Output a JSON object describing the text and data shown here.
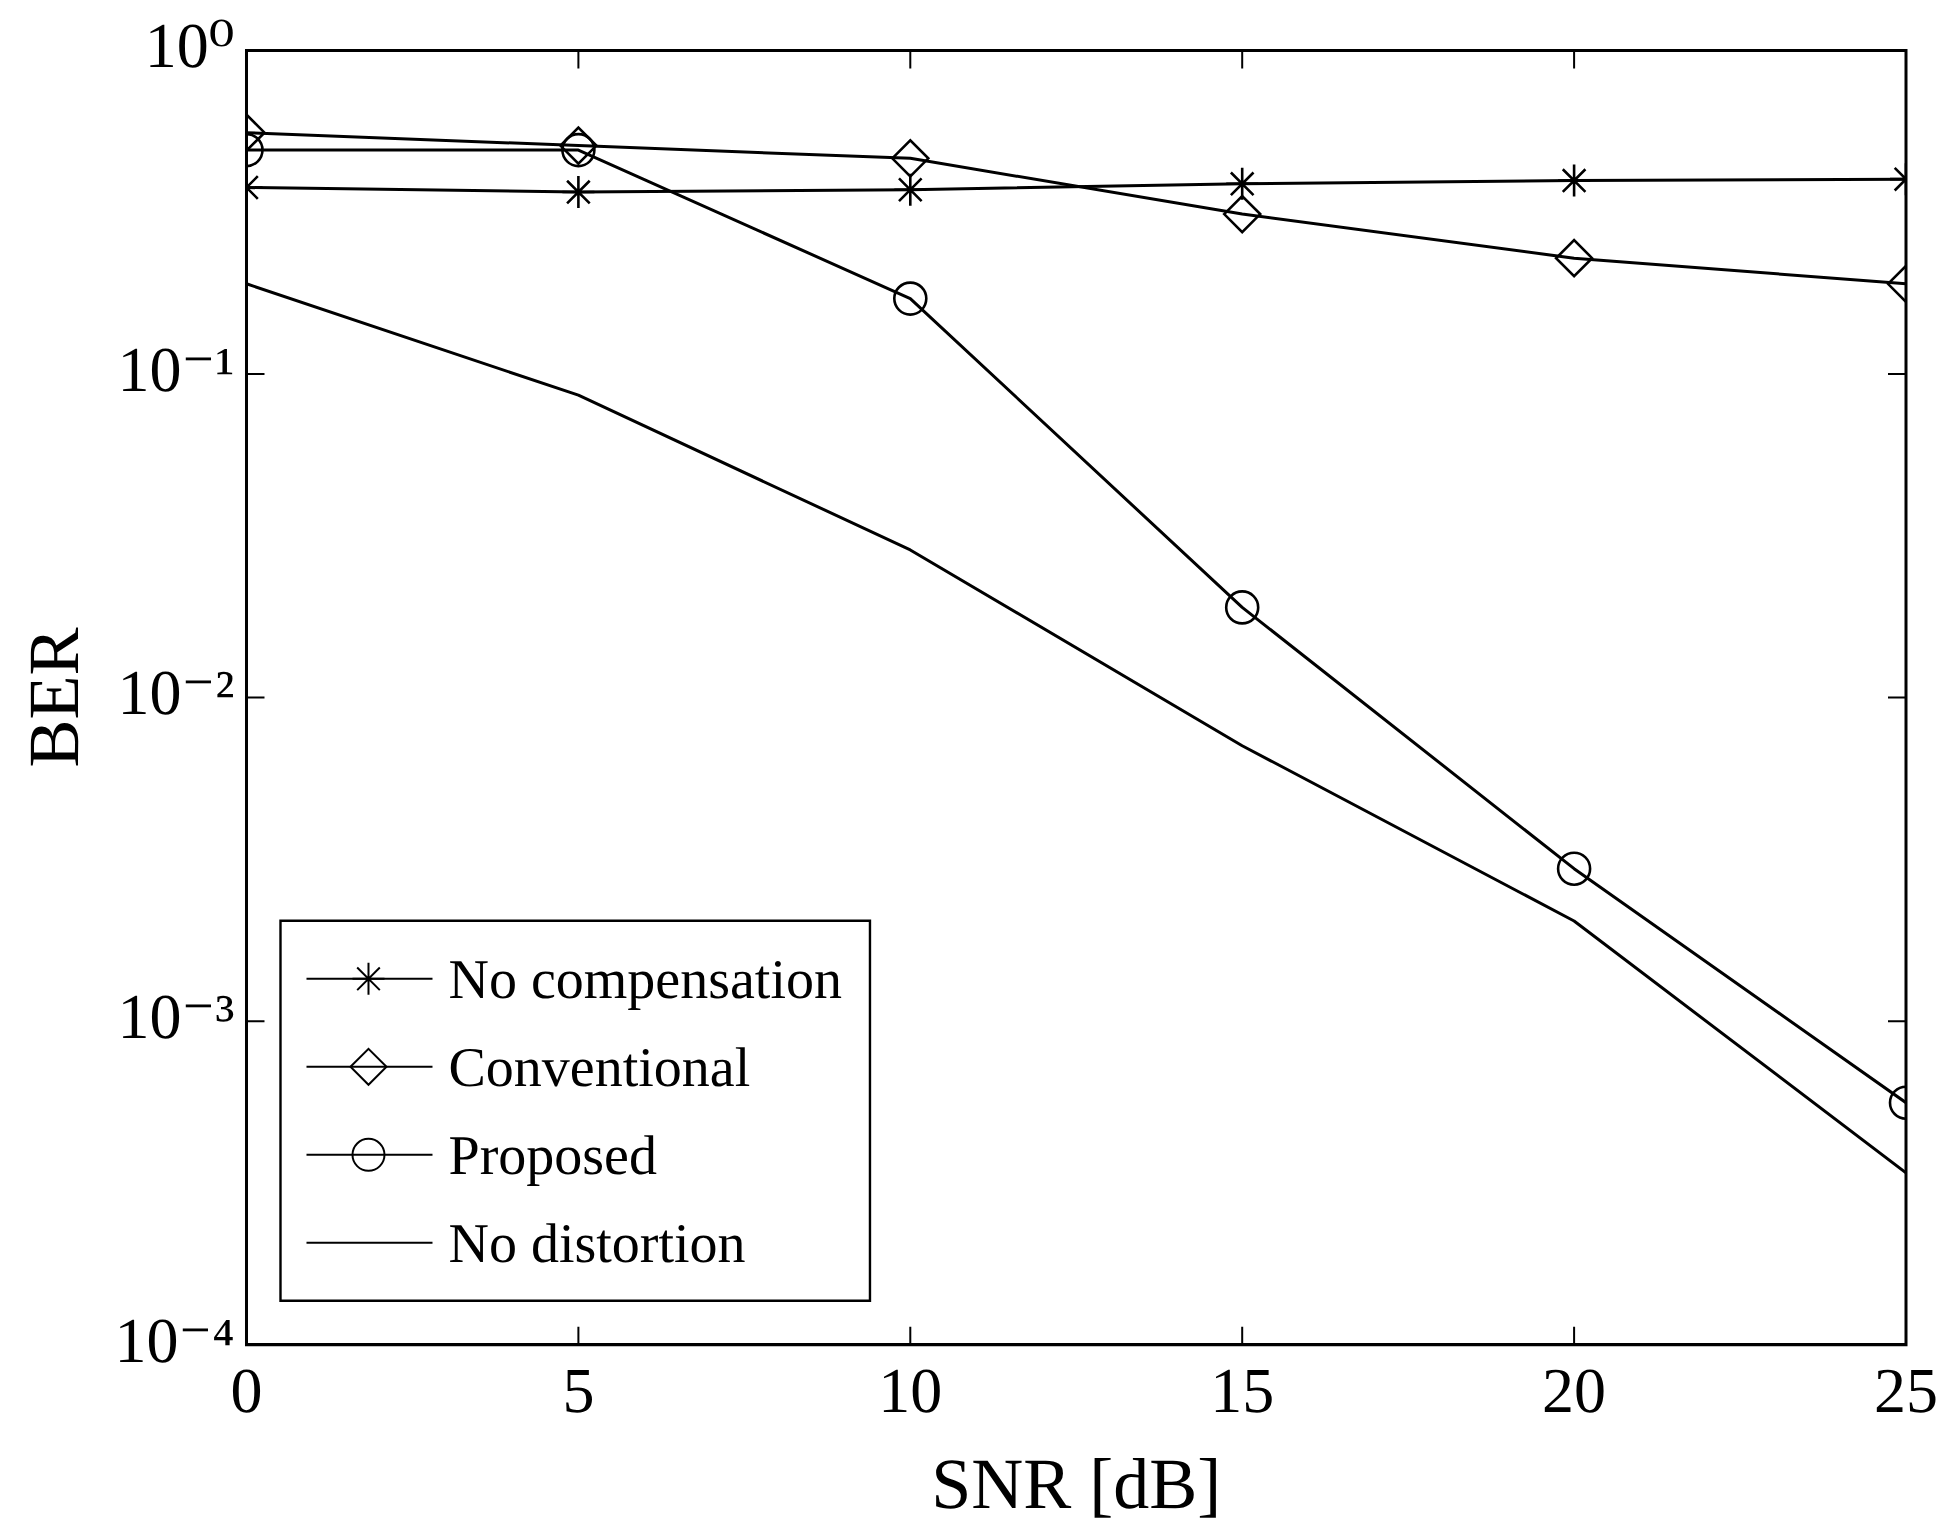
{
  "chart_data": {
    "type": "line",
    "xlabel": "SNR [dB]",
    "ylabel": "BER",
    "log": "y",
    "grid": false,
    "legend": "bottom left",
    "line_style": "solid",
    "x": [
      0,
      5,
      10,
      15,
      20,
      25
    ],
    "xlim": [
      0,
      25
    ],
    "xticks": [
      0,
      5,
      10,
      15,
      20,
      25
    ],
    "ylim": [
      0.0001,
      1
    ],
    "yticks": [
      {
        "value": 0.0001,
        "label": "10⁻⁴"
      },
      {
        "value": 0.001,
        "label": "10⁻³"
      },
      {
        "value": 0.01,
        "label": "10⁻²"
      },
      {
        "value": 0.1,
        "label": "10⁻¹"
      },
      {
        "value": 1,
        "label": "10⁰"
      }
    ],
    "series": [
      {
        "name": "No compensation",
        "color": "#000000",
        "marker": "cross",
        "values": [
          0.377,
          0.365,
          0.371,
          0.387,
          0.396,
          0.4
        ]
      },
      {
        "name": "Conventional",
        "color": "#000000",
        "marker": "diamond",
        "values": [
          0.557,
          0.508,
          0.464,
          0.312,
          0.228,
          0.19
        ]
      },
      {
        "name": "Proposed",
        "color": "#000000",
        "marker": "circle",
        "values": [
          0.492,
          0.492,
          0.171,
          0.019,
          0.00296,
          0.00056
        ]
      },
      {
        "name": "No distortion",
        "color": "#000000",
        "marker": "none",
        "values": [
          0.19,
          0.086,
          0.0286,
          0.0071,
          0.00204,
          0.00034
        ]
      }
    ]
  }
}
